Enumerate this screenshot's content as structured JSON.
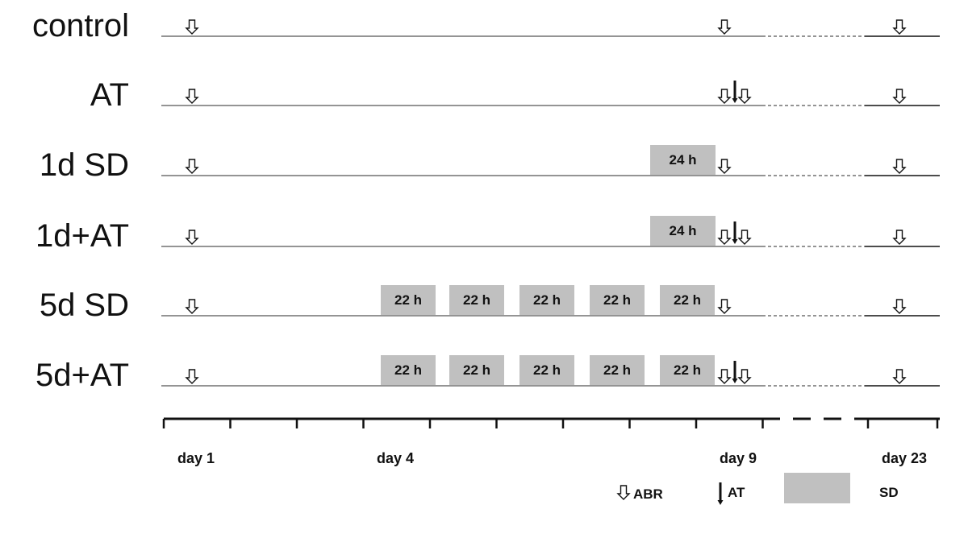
{
  "diagram": {
    "rows": [
      {
        "label": "control",
        "sd_blocks": [],
        "abr_days": [
          1,
          9,
          23
        ],
        "at_days": []
      },
      {
        "label": "AT",
        "sd_blocks": [],
        "abr_days": [
          1,
          9,
          9.3,
          23
        ],
        "at_days": [
          9.15
        ]
      },
      {
        "label": "1d SD",
        "sd_blocks": [
          {
            "label": "24 h",
            "start_day": 8,
            "end_day": 9
          }
        ],
        "abr_days": [
          1,
          9,
          23
        ],
        "at_days": []
      },
      {
        "label": "1d+AT",
        "sd_blocks": [
          {
            "label": "24 h",
            "start_day": 8,
            "end_day": 9
          }
        ],
        "abr_days": [
          1,
          9,
          9.3,
          23
        ],
        "at_days": [
          9.15
        ]
      },
      {
        "label": "5d SD",
        "sd_blocks": [
          {
            "label": "22 h",
            "start_day": 4,
            "end_day": 5
          },
          {
            "label": "22 h",
            "start_day": 5,
            "end_day": 6
          },
          {
            "label": "22 h",
            "start_day": 6,
            "end_day": 7
          },
          {
            "label": "22 h",
            "start_day": 7,
            "end_day": 8
          },
          {
            "label": "22 h",
            "start_day": 8,
            "end_day": 9
          }
        ],
        "abr_days": [
          1,
          9,
          23
        ],
        "at_days": []
      },
      {
        "label": "5d+AT",
        "sd_blocks": [
          {
            "label": "22 h",
            "start_day": 4,
            "end_day": 5
          },
          {
            "label": "22 h",
            "start_day": 5,
            "end_day": 6
          },
          {
            "label": "22 h",
            "start_day": 6,
            "end_day": 7
          },
          {
            "label": "22 h",
            "start_day": 7,
            "end_day": 8
          },
          {
            "label": "22 h",
            "start_day": 8,
            "end_day": 9
          }
        ],
        "abr_days": [
          1,
          9,
          9.3,
          23
        ],
        "at_days": [
          9.15
        ]
      }
    ],
    "axis": {
      "tick_labels": [
        {
          "label": "day 1",
          "day": 1
        },
        {
          "label": "day 4",
          "day": 4
        },
        {
          "label": "day 9",
          "day": 9
        },
        {
          "label": "day 23",
          "day": 23
        }
      ]
    },
    "legend": {
      "abr_label": "ABR",
      "at_label": "AT",
      "sd_label": "SD"
    },
    "colors": {
      "sd_fill": "#c0c0c0",
      "line": "#555555",
      "axis": "#111111",
      "text": "#111111"
    }
  }
}
